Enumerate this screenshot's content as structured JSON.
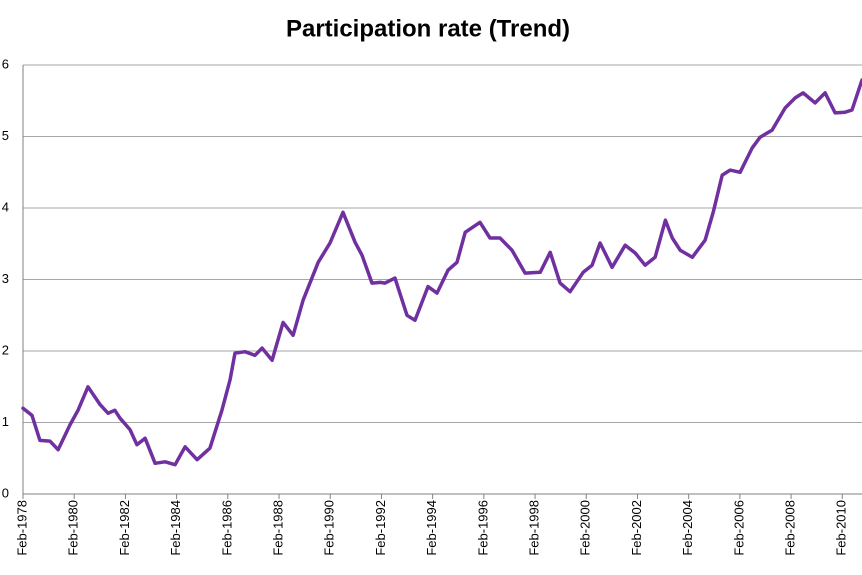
{
  "chart_data": {
    "type": "line",
    "title": "Participation rate (Trend)",
    "x": [
      1978.1,
      1978.45,
      1978.76,
      1979.15,
      1979.47,
      1979.94,
      1980.25,
      1980.64,
      1981.11,
      1981.42,
      1981.69,
      1981.89,
      1982.28,
      1982.55,
      1982.87,
      1983.26,
      1983.65,
      1984.04,
      1984.43,
      1984.9,
      1985.4,
      1985.87,
      1986.19,
      1986.38,
      1986.77,
      1987.16,
      1987.44,
      1987.83,
      1988.26,
      1988.65,
      1989.04,
      1989.63,
      1990.09,
      1990.6,
      1991.07,
      1991.34,
      1991.73,
      1992.05,
      1992.24,
      1992.63,
      1993.1,
      1993.41,
      1993.92,
      1994.27,
      1994.7,
      1995.05,
      1995.37,
      1995.95,
      1996.34,
      1996.73,
      1997.2,
      1997.71,
      1998.3,
      1998.69,
      1999.08,
      1999.47,
      1999.98,
      2000.33,
      2000.64,
      2001.11,
      2001.62,
      2002.01,
      2002.4,
      2002.79,
      2003.19,
      2003.46,
      2003.77,
      2004.24,
      2004.74,
      2005.06,
      2005.41,
      2005.72,
      2006.11,
      2006.58,
      2006.89,
      2007.36,
      2007.87,
      2008.26,
      2008.57,
      2009.04,
      2009.43,
      2009.82,
      2010.21,
      2010.48,
      2010.87
    ],
    "series": [
      {
        "name": "Participation rate",
        "color": "#7030a0",
        "values": [
          1.2,
          1.1,
          0.75,
          0.74,
          0.62,
          0.97,
          1.17,
          1.5,
          1.25,
          1.13,
          1.17,
          1.06,
          0.9,
          0.69,
          0.78,
          0.43,
          0.45,
          0.41,
          0.66,
          0.48,
          0.64,
          1.17,
          1.6,
          1.97,
          1.99,
          1.94,
          2.04,
          1.87,
          2.4,
          2.22,
          2.71,
          3.24,
          3.51,
          3.94,
          3.52,
          3.34,
          2.95,
          2.96,
          2.95,
          3.02,
          2.5,
          2.43,
          2.9,
          2.81,
          3.13,
          3.24,
          3.66,
          3.8,
          3.58,
          3.58,
          3.41,
          3.09,
          3.1,
          3.38,
          2.95,
          2.83,
          3.1,
          3.2,
          3.51,
          3.17,
          3.48,
          3.37,
          3.2,
          3.31,
          3.83,
          3.58,
          3.41,
          3.31,
          3.55,
          3.94,
          4.46,
          4.53,
          4.5,
          4.84,
          4.99,
          5.09,
          5.4,
          5.54,
          5.61,
          5.47,
          5.61,
          5.33,
          5.34,
          5.37,
          5.79
        ]
      }
    ],
    "xlim": [
      1978.1,
      2010.87
    ],
    "xticks": [
      {
        "value": 1978.1,
        "label": "Feb-1978"
      },
      {
        "value": 1980.1,
        "label": "Feb-1980"
      },
      {
        "value": 1982.1,
        "label": "Feb-1982"
      },
      {
        "value": 1984.1,
        "label": "Feb-1984"
      },
      {
        "value": 1986.1,
        "label": "Feb-1986"
      },
      {
        "value": 1988.1,
        "label": "Feb-1988"
      },
      {
        "value": 1990.1,
        "label": "Feb-1990"
      },
      {
        "value": 1992.1,
        "label": "Feb-1992"
      },
      {
        "value": 1994.1,
        "label": "Feb-1994"
      },
      {
        "value": 1996.1,
        "label": "Feb-1996"
      },
      {
        "value": 1998.1,
        "label": "Feb-1998"
      },
      {
        "value": 2000.1,
        "label": "Feb-2000"
      },
      {
        "value": 2002.1,
        "label": "Feb-2002"
      },
      {
        "value": 2004.1,
        "label": "Feb-2004"
      },
      {
        "value": 2006.1,
        "label": "Feb-2006"
      },
      {
        "value": 2008.1,
        "label": "Feb-2008"
      },
      {
        "value": 2010.1,
        "label": "Feb-2010"
      }
    ],
    "ylim": [
      0,
      6
    ],
    "yticks": [
      0,
      1,
      2,
      3,
      4,
      5,
      6
    ],
    "grid": true
  }
}
